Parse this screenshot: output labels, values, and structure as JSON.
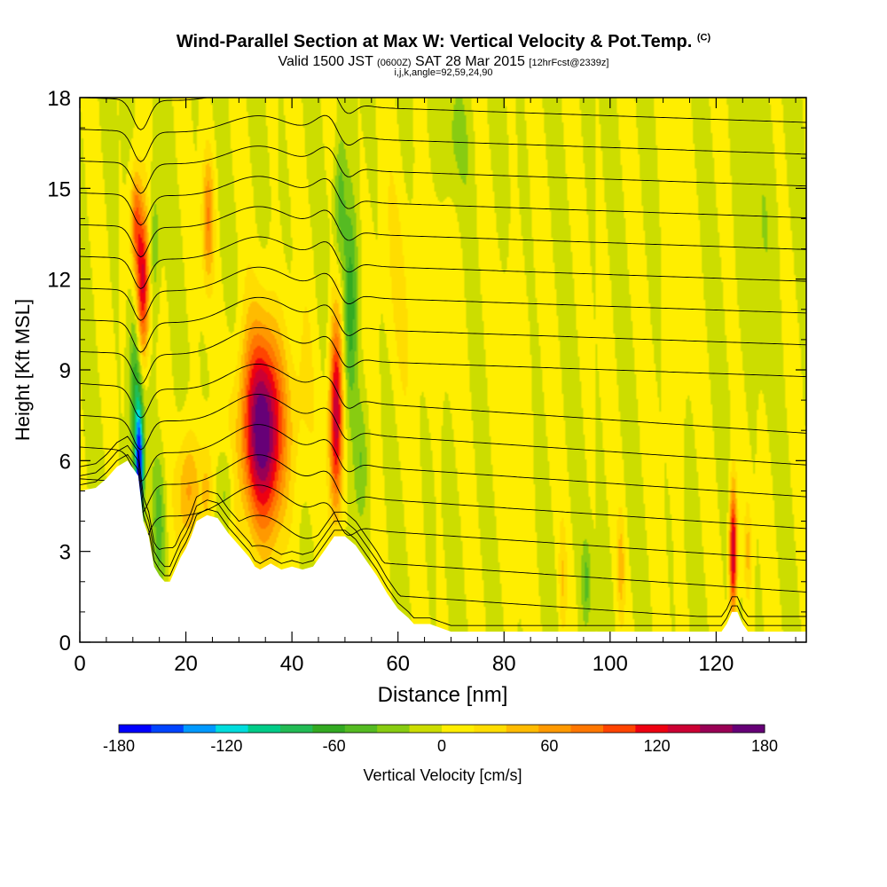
{
  "title": {
    "main": "Wind-Parallel Section at Max W: Vertical Velocity & Pot.Temp.",
    "main_suffix": "(C)",
    "valid_a": "Valid 1500 JST",
    "valid_b": "(0600Z)",
    "valid_c": "SAT 28 Mar 2015",
    "valid_d": "[12hrFcst@2339z]",
    "indices": "i,j,k,angle=92,59,24,90"
  },
  "chart_data": {
    "type": "heatmap",
    "xlabel": "Distance [nm]",
    "ylabel": "Height [Kft MSL]",
    "xlim": [
      0,
      137
    ],
    "ylim": [
      0,
      18
    ],
    "x_ticks": [
      "0",
      "20",
      "40",
      "60",
      "80",
      "100",
      "120"
    ],
    "x_tick_values": [
      0,
      20,
      40,
      60,
      80,
      100,
      120
    ],
    "y_ticks": [
      "0",
      "3",
      "6",
      "9",
      "12",
      "15",
      "18"
    ],
    "y_tick_values": [
      0,
      3,
      6,
      9,
      12,
      15,
      18
    ],
    "background_value": 0,
    "colorbar": {
      "label": "Vertical Velocity [cm/s]",
      "tick_labels": [
        "-180",
        "-120",
        "-60",
        "0",
        "60",
        "120",
        "180"
      ],
      "tick_values": [
        -180,
        -120,
        -60,
        0,
        60,
        120,
        180
      ],
      "colors": [
        "#0000ff",
        "#0044ff",
        "#0099ff",
        "#00dddd",
        "#00cc88",
        "#22bb55",
        "#33aa22",
        "#55bb22",
        "#88cc11",
        "#ccdd00",
        "#ffee00",
        "#ffdd00",
        "#ffbb00",
        "#ff9900",
        "#ff7700",
        "#ff4400",
        "#ee0011",
        "#cc0033",
        "#990055",
        "#660077"
      ]
    },
    "terrain": [
      [
        0,
        5.0
      ],
      [
        3,
        5.1
      ],
      [
        5,
        5.4
      ],
      [
        7,
        5.8
      ],
      [
        9,
        6.0
      ],
      [
        11,
        5.5
      ],
      [
        12,
        4.0
      ],
      [
        13,
        3.5
      ],
      [
        14,
        2.5
      ],
      [
        15,
        2.2
      ],
      [
        16,
        2.0
      ],
      [
        17,
        2.0
      ],
      [
        18,
        2.4
      ],
      [
        19,
        2.8
      ],
      [
        20,
        3.1
      ],
      [
        21,
        3.5
      ],
      [
        22,
        4.0
      ],
      [
        24,
        4.2
      ],
      [
        26,
        4.1
      ],
      [
        28,
        3.6
      ],
      [
        30,
        3.2
      ],
      [
        32,
        2.8
      ],
      [
        33,
        2.5
      ],
      [
        34,
        2.4
      ],
      [
        36,
        2.6
      ],
      [
        38,
        2.4
      ],
      [
        40,
        2.5
      ],
      [
        42,
        2.4
      ],
      [
        44,
        2.5
      ],
      [
        46,
        3.0
      ],
      [
        48,
        3.5
      ],
      [
        50,
        3.5
      ],
      [
        52,
        3.2
      ],
      [
        54,
        2.7
      ],
      [
        56,
        2.2
      ],
      [
        58,
        1.6
      ],
      [
        60,
        1.1
      ],
      [
        62,
        0.8
      ],
      [
        63,
        0.6
      ],
      [
        66,
        0.6
      ],
      [
        70,
        0.35
      ],
      [
        80,
        0.35
      ],
      [
        90,
        0.35
      ],
      [
        100,
        0.35
      ],
      [
        110,
        0.35
      ],
      [
        121,
        0.35
      ],
      [
        122,
        0.6
      ],
      [
        123,
        1.0
      ],
      [
        124,
        1.0
      ],
      [
        125,
        0.6
      ],
      [
        126,
        0.35
      ],
      [
        137,
        0.35
      ]
    ],
    "blobs": [
      {
        "x": 34.5,
        "y": 7.0,
        "sx": 3.0,
        "sy": 2.3,
        "value": 180
      },
      {
        "x": 48.3,
        "y": 7.5,
        "sx": 0.9,
        "sy": 2.3,
        "value": 150
      },
      {
        "x": 11.8,
        "y": 11.8,
        "sx": 0.9,
        "sy": 1.8,
        "value": 140
      },
      {
        "x": 10.5,
        "y": 14.0,
        "sx": 0.7,
        "sy": 1.2,
        "value": 80
      },
      {
        "x": 24.2,
        "y": 14.0,
        "sx": 0.8,
        "sy": 1.5,
        "value": 70
      },
      {
        "x": 24.0,
        "y": 5.0,
        "sx": 0.9,
        "sy": 1.2,
        "value": 40
      },
      {
        "x": 20.5,
        "y": 5.0,
        "sx": 1.5,
        "sy": 1.4,
        "value": 60
      },
      {
        "x": 11.2,
        "y": 5.6,
        "sx": 0.55,
        "sy": 1.5,
        "value": -180
      },
      {
        "x": 10.5,
        "y": 8.5,
        "sx": 0.8,
        "sy": 2.0,
        "value": -70
      },
      {
        "x": 51.0,
        "y": 11.0,
        "sx": 1.0,
        "sy": 2.5,
        "value": -70
      },
      {
        "x": 49.0,
        "y": 14.5,
        "sx": 0.8,
        "sy": 1.5,
        "value": -50
      },
      {
        "x": 14.0,
        "y": 13.0,
        "sx": 0.8,
        "sy": 2.0,
        "value": -40
      },
      {
        "x": 15.0,
        "y": 4.0,
        "sx": 0.8,
        "sy": 1.5,
        "value": -40
      },
      {
        "x": 27.5,
        "y": 5.0,
        "sx": 1.0,
        "sy": 1.2,
        "value": -35
      },
      {
        "x": 42.0,
        "y": 8.0,
        "sx": 1.5,
        "sy": 2.5,
        "value": 15
      },
      {
        "x": 53.0,
        "y": 6.0,
        "sx": 1.0,
        "sy": 1.5,
        "value": -35
      },
      {
        "x": 62.0,
        "y": 12.0,
        "sx": 6.0,
        "sy": 3.0,
        "value": 15
      },
      {
        "x": 95.5,
        "y": 2.0,
        "sx": 0.6,
        "sy": 1.0,
        "value": -40
      },
      {
        "x": 123.2,
        "y": 3.0,
        "sx": 0.5,
        "sy": 1.5,
        "value": 150
      },
      {
        "x": 126.0,
        "y": 3.0,
        "sx": 0.5,
        "sy": 1.2,
        "value": 40
      },
      {
        "x": 102.0,
        "y": 2.5,
        "sx": 0.5,
        "sy": 1.2,
        "value": 40
      },
      {
        "x": 91.0,
        "y": 2.0,
        "sx": 0.5,
        "sy": 1.2,
        "value": 30
      },
      {
        "x": 82.0,
        "y": 8.0,
        "sx": 2.5,
        "sy": 3.0,
        "value": 15
      },
      {
        "x": 112.0,
        "y": 10.0,
        "sx": 2.0,
        "sy": 3.0,
        "value": 12
      },
      {
        "x": 70.0,
        "y": 16.5,
        "sx": 3.0,
        "sy": 1.5,
        "value": -20
      },
      {
        "x": 128.0,
        "y": 14.0,
        "sx": 3.0,
        "sy": 3.0,
        "value": -15
      }
    ]
  }
}
